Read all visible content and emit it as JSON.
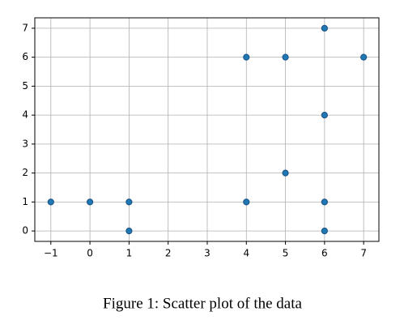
{
  "chart_data": {
    "type": "scatter",
    "x": [
      -1,
      0,
      1,
      1,
      4,
      4,
      5,
      5,
      6,
      6,
      6,
      6,
      7
    ],
    "values": [
      1,
      1,
      1,
      0,
      6,
      1,
      6,
      2,
      7,
      4,
      1,
      0,
      6
    ],
    "color": "#1f77b4",
    "xlim": [
      -1.41,
      7.39
    ],
    "xticks": [
      {
        "value": -1,
        "label": "−1"
      },
      0,
      1,
      2,
      3,
      4,
      5,
      6,
      7
    ],
    "ylim": [
      -0.36,
      7.36
    ],
    "yticks": [
      0,
      1,
      2,
      3,
      4,
      5,
      6,
      7
    ],
    "grid": true
  },
  "caption": "Figure 1: Scatter plot of the data"
}
